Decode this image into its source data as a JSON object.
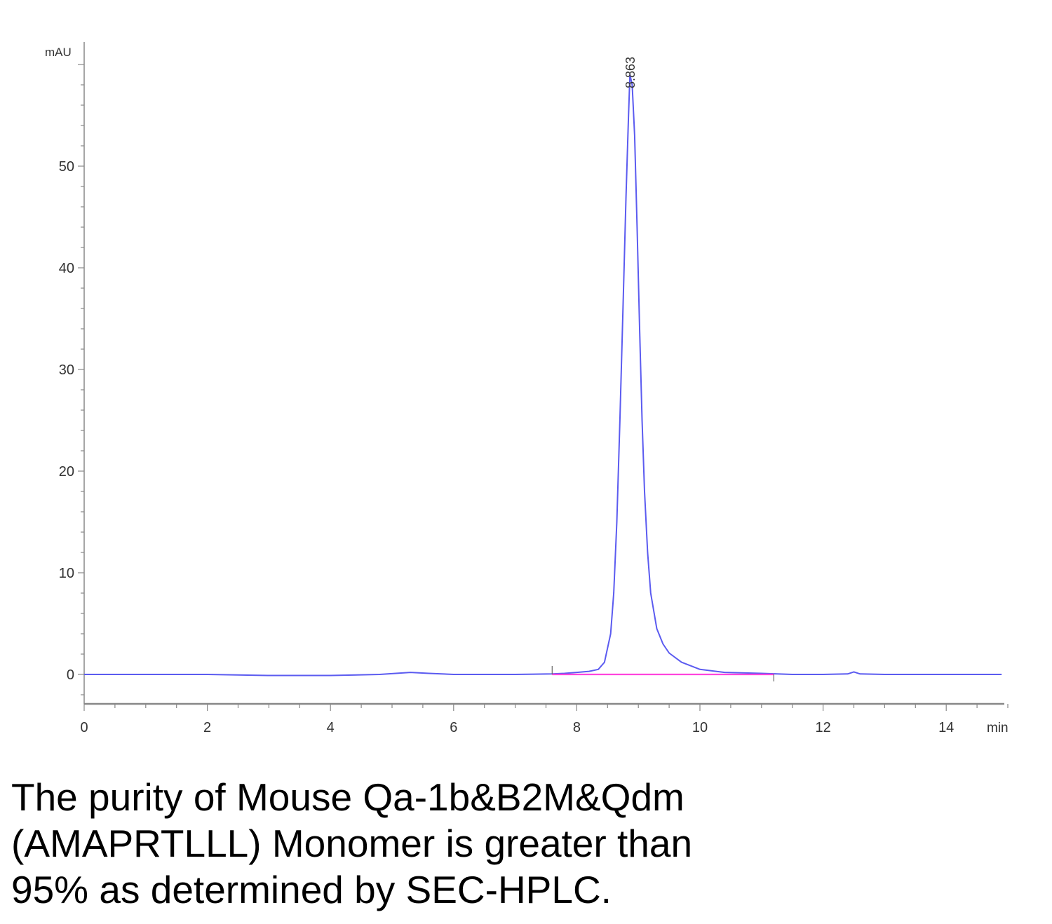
{
  "chart_data": {
    "type": "line",
    "title": "",
    "xlabel": "min",
    "ylabel": "mAU",
    "xlim": [
      0,
      15
    ],
    "ylim": [
      -3,
      62
    ],
    "x_ticks": [
      0,
      2,
      4,
      6,
      8,
      10,
      12,
      14
    ],
    "y_ticks": [
      0,
      10,
      20,
      30,
      40,
      50
    ],
    "peak_label": "8.863",
    "series": [
      {
        "color": "#5b5bf0",
        "x": [
          0,
          1,
          2,
          3,
          4,
          4.8,
          5.3,
          5.6,
          6,
          7,
          7.6,
          7.8,
          8.0,
          8.2,
          8.35,
          8.45,
          8.55,
          8.6,
          8.65,
          8.7,
          8.75,
          8.8,
          8.84,
          8.863,
          8.9,
          8.94,
          8.98,
          9.02,
          9.06,
          9.1,
          9.15,
          9.2,
          9.3,
          9.4,
          9.5,
          9.7,
          10.0,
          10.4,
          11.0,
          11.5,
          12.0,
          12.4,
          12.5,
          12.6,
          13,
          14,
          14.9
        ],
        "y": [
          0,
          0,
          0,
          -0.1,
          -0.1,
          0,
          0.2,
          0.1,
          0,
          0,
          0.05,
          0.1,
          0.2,
          0.3,
          0.5,
          1.2,
          4.0,
          8.0,
          15.0,
          25.0,
          36.0,
          47.0,
          55.0,
          59.0,
          58.0,
          53.0,
          44.0,
          34.0,
          25.0,
          18.0,
          12.0,
          8.0,
          4.5,
          3.0,
          2.1,
          1.2,
          0.5,
          0.2,
          0.1,
          0,
          0,
          0.05,
          0.25,
          0.05,
          0,
          0,
          0
        ]
      },
      {
        "color": "#ff44dd",
        "x": [
          7.6,
          11.2
        ],
        "y": [
          0,
          0
        ]
      }
    ],
    "grid": false
  },
  "caption": {
    "line1": "The purity of Mouse Qa-1b&B2M&Qdm",
    "line2": "(AMAPRTLLL) Monomer is greater than",
    "line3": "95% as determined by SEC-HPLC."
  }
}
